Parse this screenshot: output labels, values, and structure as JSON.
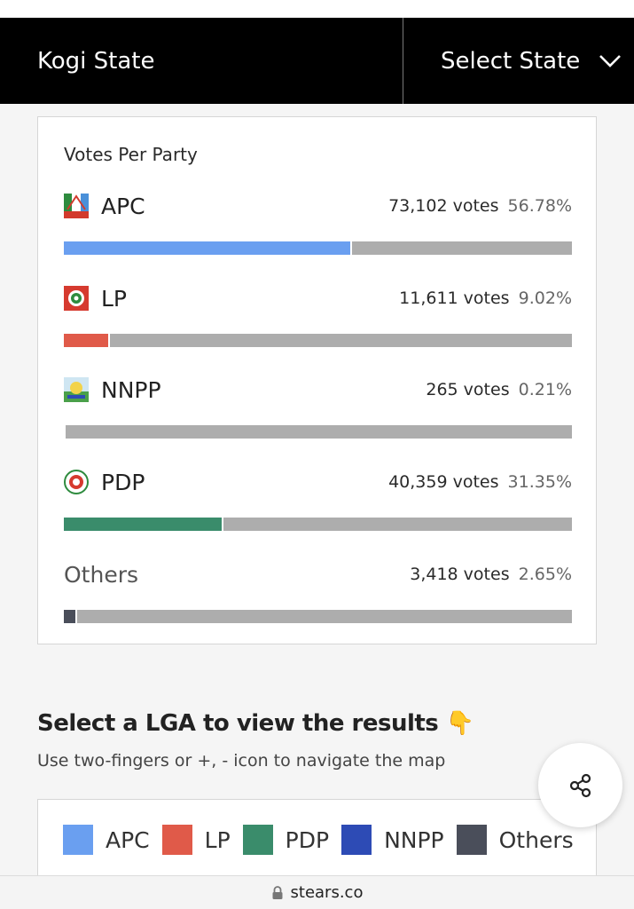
{
  "header": {
    "state_name": "Kogi State",
    "select_label": "Select State"
  },
  "votes_card": {
    "title": "Votes Per Party",
    "parties": [
      {
        "name": "APC",
        "votes": "73,102 votes",
        "percent": "56.78%",
        "share": 0.5678,
        "color": "#6a9ff0",
        "logo": "apc-logo-icon"
      },
      {
        "name": "LP",
        "votes": "11,611 votes",
        "percent": "9.02%",
        "share": 0.0902,
        "color": "#e05a49",
        "logo": "lp-logo-icon"
      },
      {
        "name": "NNPP",
        "votes": "265 votes",
        "percent": "0.21%",
        "share": 0.0021,
        "color": "#2d4bb5",
        "logo": "nnpp-logo-icon"
      },
      {
        "name": "PDP",
        "votes": "40,359 votes",
        "percent": "31.35%",
        "share": 0.3135,
        "color": "#3a8c6b",
        "logo": "pdp-logo-icon"
      },
      {
        "name": "Others",
        "votes": "3,418 votes",
        "percent": "2.65%",
        "share": 0.0265,
        "color": "#4a4e5a",
        "logo": null
      }
    ]
  },
  "lga_section": {
    "title": "Select a LGA to view the results",
    "emoji": "👇",
    "hint": "Use two-fingers or +, - icon to navigate the map"
  },
  "legend": [
    {
      "label": "APC",
      "color": "#6a9ff0"
    },
    {
      "label": "LP",
      "color": "#e05a49"
    },
    {
      "label": "PDP",
      "color": "#3a8c6b"
    },
    {
      "label": "NNPP",
      "color": "#2d4bb5"
    },
    {
      "label": "Others",
      "color": "#4a4e5a"
    }
  ],
  "browser": {
    "url": "stears.co"
  }
}
